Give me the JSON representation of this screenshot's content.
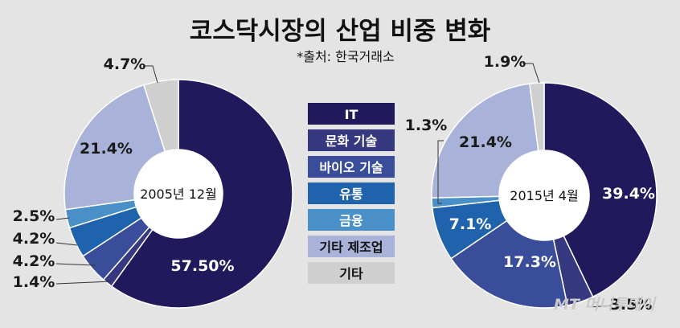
{
  "title": "코스닥시장의 산업 비중 변화",
  "source": "*출처: 한국거래소",
  "watermark": "MT 머니투데이",
  "colors": {
    "IT": "#201a5c",
    "문화 기술": "#363880",
    "바이오 기술": "#3a4d9a",
    "유통": "#1f63ad",
    "금융": "#4a90c8",
    "기타 제조업": "#a9b3da",
    "기타": "#cfcfcf"
  },
  "legend": [
    "IT",
    "문화 기술",
    "바이오 기술",
    "유통",
    "금융",
    "기타 제조업",
    "기타"
  ],
  "chart_data": [
    {
      "type": "pie",
      "center_label": "2005년 12월",
      "slices": [
        {
          "name": "IT",
          "value": 57.5,
          "label": "57.50%"
        },
        {
          "name": "문화 기술",
          "value": 1.4,
          "label": "1.4%"
        },
        {
          "name": "바이오 기술",
          "value": 4.2,
          "label": "4.2%"
        },
        {
          "name": "유통",
          "value": 4.2,
          "label": "4.2%"
        },
        {
          "name": "금융",
          "value": 2.5,
          "label": "2.5%"
        },
        {
          "name": "기타 제조업",
          "value": 21.4,
          "label": "21.4%"
        },
        {
          "name": "기타",
          "value": 4.7,
          "label": "4.7%"
        }
      ]
    },
    {
      "type": "pie",
      "center_label": "2015년 4월",
      "slices": [
        {
          "name": "IT",
          "value": 39.4,
          "label": "39.4%"
        },
        {
          "name": "문화 기술",
          "value": 3.5,
          "label": "3.5%"
        },
        {
          "name": "바이오 기술",
          "value": 17.3,
          "label": "17.3%"
        },
        {
          "name": "유통",
          "value": 7.1,
          "label": "7.1%"
        },
        {
          "name": "금융",
          "value": 1.3,
          "label": "1.3%"
        },
        {
          "name": "기타 제조업",
          "value": 21.4,
          "label": "21.4%"
        },
        {
          "name": "기타",
          "value": 1.9,
          "label": "1.9%"
        }
      ]
    }
  ]
}
